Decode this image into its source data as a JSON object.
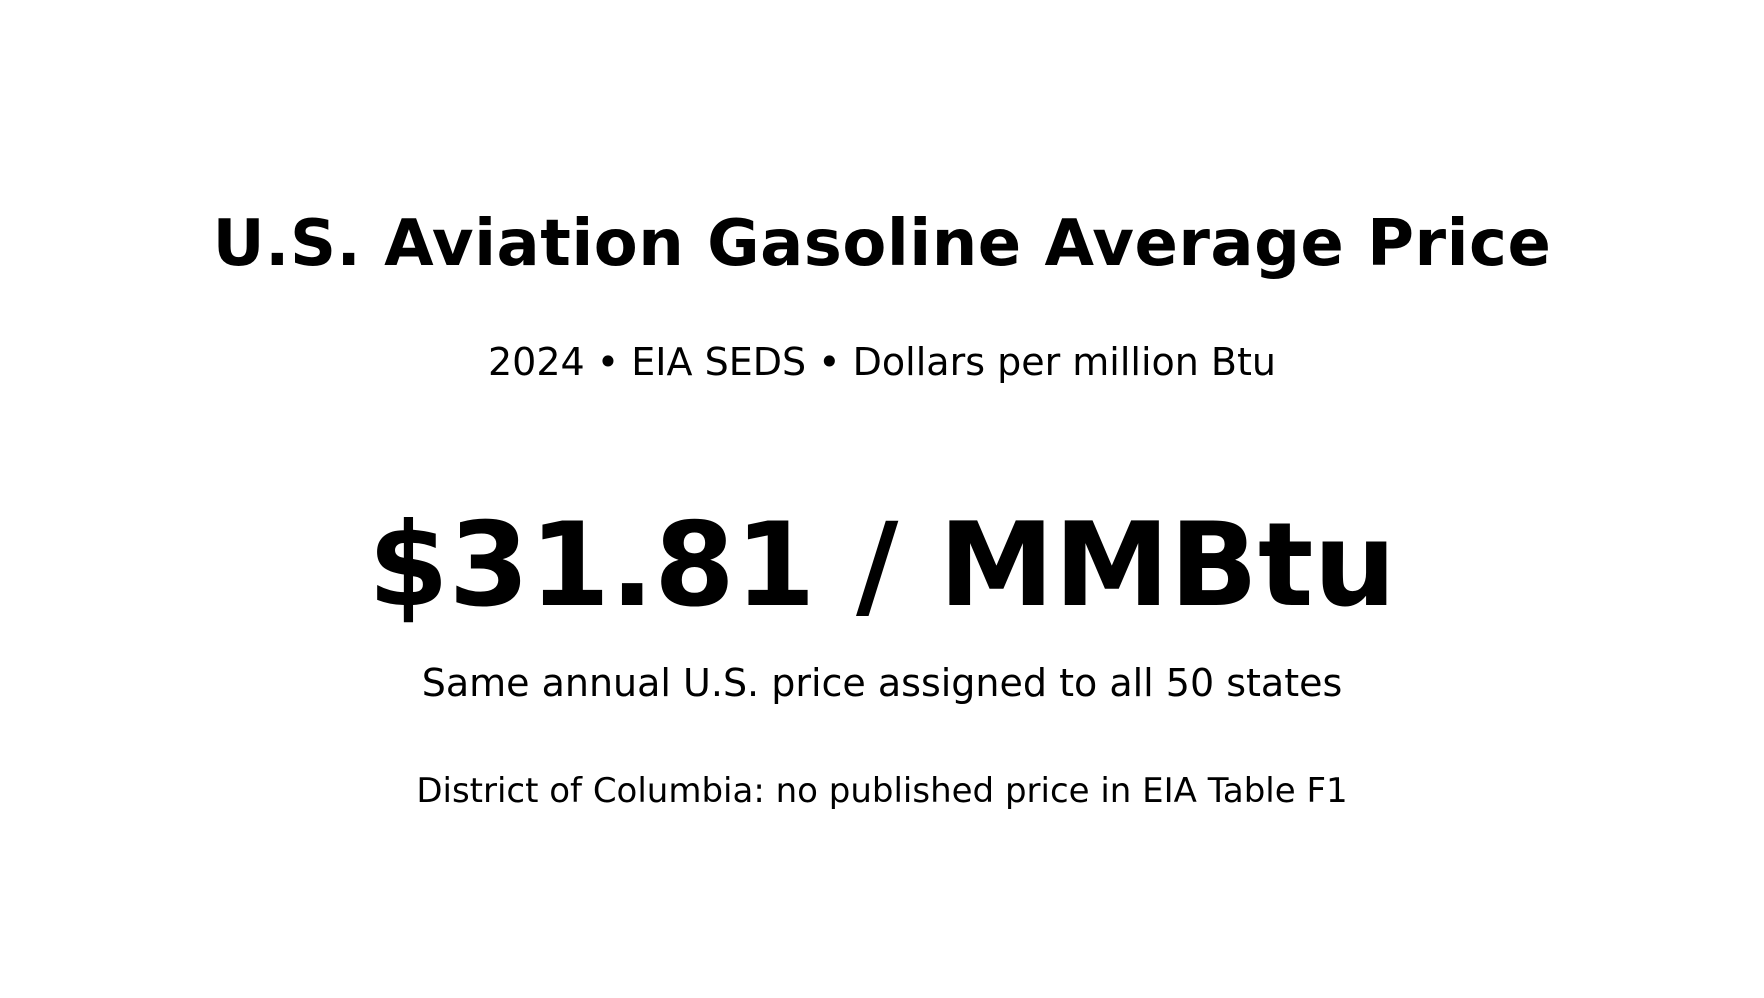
{
  "chart_data": {
    "type": "table",
    "title": "U.S. Aviation Gasoline Average Price",
    "subtitle": "2024 • EIA SEDS • Dollars per million Btu",
    "kpi": {
      "value": 31.81,
      "label": "$31.81 / MMBtu"
    },
    "note": "Same annual U.S. price assigned to all 50 states",
    "footnote": "District of Columbia: no published price in EIA Table F1"
  }
}
